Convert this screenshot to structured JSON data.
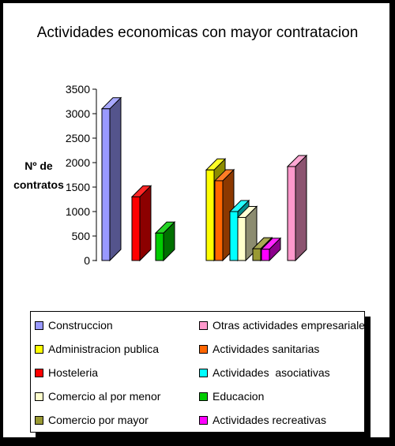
{
  "chart_data": {
    "type": "bar",
    "title": "Actividades economicas con mayor contratacion",
    "ylabel": "Nº de contratos",
    "ylim": [
      0,
      3500
    ],
    "yticks": [
      "0",
      "500",
      "1000",
      "1500",
      "2000",
      "2500",
      "3000",
      "3500"
    ],
    "grid": false,
    "legend_position": "bottom",
    "series": [
      {
        "name": "Construccion",
        "value": 3100,
        "color": "#9999ff"
      },
      {
        "name": "Hosteleria",
        "value": 1300,
        "color": "#ff0000"
      },
      {
        "name": "Educacion",
        "value": 560,
        "color": "#00cc00"
      },
      {
        "name": "Administracion publica",
        "value": 1850,
        "color": "#ffff00"
      },
      {
        "name": "Actividades sanitarias",
        "value": 1630,
        "color": "#ff6600"
      },
      {
        "name": "Actividades  asociativas",
        "value": 1000,
        "color": "#00ffff"
      },
      {
        "name": "Comercio al por menor",
        "value": 880,
        "color": "#ffffcc"
      },
      {
        "name": "Comercio por mayor",
        "value": 240,
        "color": "#999933"
      },
      {
        "name": "Actividades recreativas",
        "value": 230,
        "color": "#ff00ff"
      },
      {
        "name": "Otras actividades empresariales",
        "value": 1920,
        "color": "#ff99cc"
      }
    ]
  },
  "legend": [
    {
      "label": "Construccion",
      "color": "#9999ff"
    },
    {
      "label": "Otras actividades empresariales",
      "color": "#ff99cc"
    },
    {
      "label": "Administracion publica",
      "color": "#ffff00"
    },
    {
      "label": "Actividades sanitarias",
      "color": "#ff6600"
    },
    {
      "label": "Hosteleria",
      "color": "#ff0000"
    },
    {
      "label": "Actividades  asociativas",
      "color": "#00ffff"
    },
    {
      "label": "Comercio al por menor",
      "color": "#ffffcc"
    },
    {
      "label": "Educacion",
      "color": "#00cc00"
    },
    {
      "label": "Comercio por mayor",
      "color": "#999933"
    },
    {
      "label": "Actividades recreativas",
      "color": "#ff00ff"
    }
  ]
}
